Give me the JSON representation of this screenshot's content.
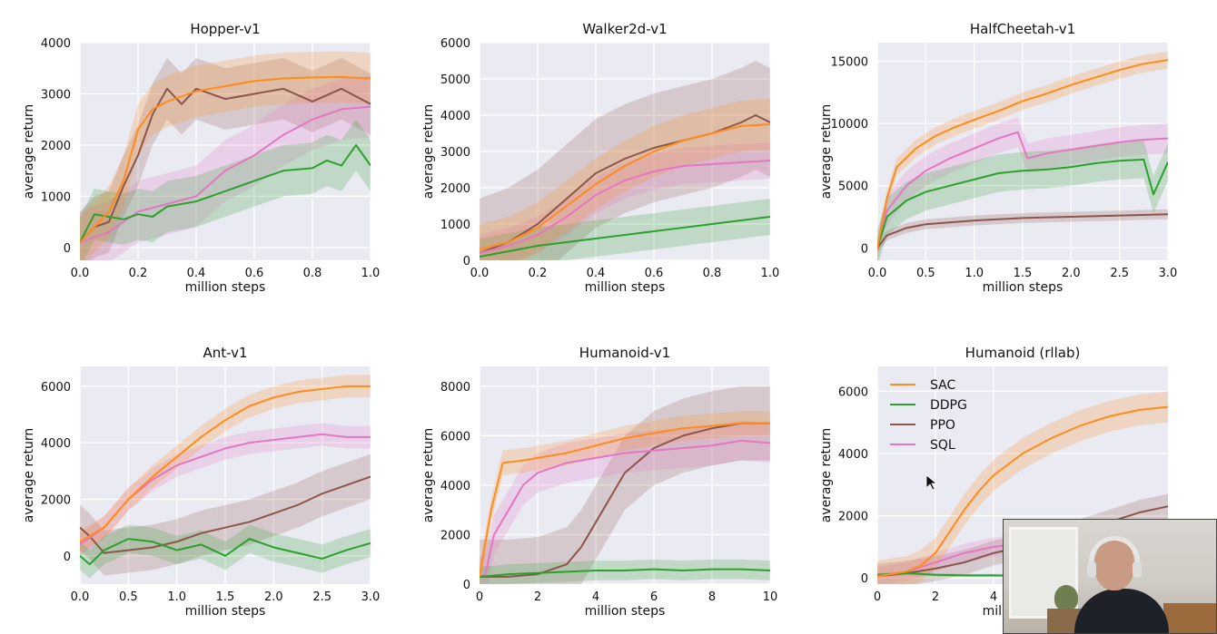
{
  "colors": {
    "SAC": "#ff8c1a",
    "DDPG": "#2ca02c",
    "PPO": "#8c564b",
    "SQL": "#e377c2"
  },
  "legend": {
    "entries": [
      "SAC",
      "DDPG",
      "PPO",
      "SQL"
    ],
    "placement": "upper-left of Humanoid (rllab) panel"
  },
  "chart_data": [
    {
      "type": "line",
      "title": "Hopper-v1",
      "xlabel": "million steps",
      "ylabel": "average return",
      "xlim": [
        0,
        1.0
      ],
      "ylim": [
        -250,
        4000
      ],
      "xticks": [
        0.0,
        0.2,
        0.4,
        0.6,
        0.8,
        1.0
      ],
      "xtick_labels": [
        "0.0",
        "0.2",
        "0.4",
        "0.6",
        "0.8",
        "1.0"
      ],
      "yticks": [
        0,
        1000,
        2000,
        3000,
        4000
      ],
      "ytick_labels": [
        "0",
        "1000",
        "2000",
        "3000",
        "4000"
      ],
      "series": [
        {
          "name": "SAC",
          "x": [
            0,
            0.05,
            0.1,
            0.15,
            0.2,
            0.25,
            0.3,
            0.4,
            0.5,
            0.6,
            0.7,
            0.8,
            0.9,
            1.0
          ],
          "y": [
            100,
            400,
            700,
            1300,
            2300,
            2700,
            2850,
            3050,
            3150,
            3250,
            3300,
            3320,
            3330,
            3300
          ],
          "spread": 500
        },
        {
          "name": "DDPG",
          "x": [
            0,
            0.05,
            0.1,
            0.15,
            0.2,
            0.25,
            0.3,
            0.4,
            0.5,
            0.6,
            0.7,
            0.8,
            0.85,
            0.9,
            0.95,
            1.0
          ],
          "y": [
            100,
            650,
            600,
            550,
            650,
            600,
            800,
            900,
            1100,
            1300,
            1500,
            1550,
            1700,
            1600,
            2000,
            1600
          ],
          "spread": 500
        },
        {
          "name": "PPO",
          "x": [
            0,
            0.05,
            0.1,
            0.15,
            0.2,
            0.25,
            0.3,
            0.35,
            0.4,
            0.5,
            0.6,
            0.7,
            0.8,
            0.9,
            1.0
          ],
          "y": [
            100,
            400,
            500,
            1200,
            1800,
            2600,
            3100,
            2800,
            3100,
            2900,
            3000,
            3100,
            2850,
            3100,
            2800
          ],
          "spread": 600
        },
        {
          "name": "SQL",
          "x": [
            0,
            0.1,
            0.2,
            0.3,
            0.4,
            0.5,
            0.6,
            0.7,
            0.8,
            0.9,
            1.0
          ],
          "y": [
            100,
            300,
            700,
            850,
            1000,
            1500,
            1800,
            2200,
            2500,
            2700,
            2750
          ],
          "spread": 600
        }
      ]
    },
    {
      "type": "line",
      "title": "Walker2d-v1",
      "xlabel": "million steps",
      "ylabel": "average return",
      "xlim": [
        0,
        1.0
      ],
      "ylim": [
        0,
        6000
      ],
      "xticks": [
        0.0,
        0.2,
        0.4,
        0.6,
        0.8,
        1.0
      ],
      "xtick_labels": [
        "0.0",
        "0.2",
        "0.4",
        "0.6",
        "0.8",
        "1.0"
      ],
      "yticks": [
        0,
        1000,
        2000,
        3000,
        4000,
        5000,
        6000
      ],
      "ytick_labels": [
        "0",
        "1000",
        "2000",
        "3000",
        "4000",
        "5000",
        "6000"
      ],
      "series": [
        {
          "name": "SAC",
          "x": [
            0,
            0.1,
            0.2,
            0.3,
            0.4,
            0.5,
            0.6,
            0.7,
            0.8,
            0.9,
            1.0
          ],
          "y": [
            300,
            500,
            900,
            1500,
            2100,
            2600,
            3000,
            3300,
            3500,
            3700,
            3750
          ],
          "spread": 700
        },
        {
          "name": "DDPG",
          "x": [
            0,
            0.1,
            0.2,
            0.3,
            0.4,
            0.5,
            0.6,
            0.7,
            0.8,
            0.9,
            1.0
          ],
          "y": [
            100,
            250,
            400,
            500,
            600,
            700,
            800,
            900,
            1000,
            1100,
            1200
          ],
          "spread": 500
        },
        {
          "name": "PPO",
          "x": [
            0,
            0.1,
            0.2,
            0.3,
            0.4,
            0.5,
            0.6,
            0.7,
            0.8,
            0.9,
            0.95,
            1.0
          ],
          "y": [
            200,
            500,
            1000,
            1700,
            2400,
            2800,
            3100,
            3300,
            3500,
            3800,
            4000,
            3800
          ],
          "spread": 1500
        },
        {
          "name": "SQL",
          "x": [
            0,
            0.1,
            0.2,
            0.3,
            0.4,
            0.5,
            0.6,
            0.7,
            0.8,
            0.9,
            1.0
          ],
          "y": [
            200,
            400,
            700,
            1200,
            1800,
            2200,
            2450,
            2600,
            2650,
            2700,
            2750
          ],
          "spread": 500
        }
      ]
    },
    {
      "type": "line",
      "title": "HalfCheetah-v1",
      "xlabel": "million steps",
      "ylabel": "average return",
      "xlim": [
        0,
        3.0
      ],
      "ylim": [
        -1000,
        16500
      ],
      "xticks": [
        0.0,
        0.5,
        1.0,
        1.5,
        2.0,
        2.5,
        3.0
      ],
      "xtick_labels": [
        "0.0",
        "0.5",
        "1.0",
        "1.5",
        "2.0",
        "2.5",
        "3.0"
      ],
      "yticks": [
        0,
        5000,
        10000,
        15000
      ],
      "ytick_labels": [
        "0",
        "5000",
        "10000",
        "15000"
      ],
      "series": [
        {
          "name": "SAC",
          "x": [
            0,
            0.1,
            0.2,
            0.4,
            0.6,
            0.8,
            1.0,
            1.25,
            1.5,
            1.75,
            2.0,
            2.25,
            2.5,
            2.75,
            3.0
          ],
          "y": [
            0,
            4000,
            6500,
            8000,
            9000,
            9700,
            10300,
            11000,
            11800,
            12400,
            13100,
            13700,
            14300,
            14800,
            15100
          ],
          "spread": 700
        },
        {
          "name": "DDPG",
          "x": [
            0,
            0.1,
            0.3,
            0.5,
            0.75,
            1.0,
            1.25,
            1.5,
            1.75,
            2.0,
            2.25,
            2.5,
            2.75,
            2.85,
            3.0
          ],
          "y": [
            0,
            2500,
            3800,
            4500,
            5000,
            5500,
            6000,
            6200,
            6300,
            6500,
            6800,
            7000,
            7100,
            4300,
            6900
          ],
          "spread": 1500
        },
        {
          "name": "PPO",
          "x": [
            0,
            0.1,
            0.3,
            0.5,
            1.0,
            1.5,
            2.0,
            2.5,
            3.0
          ],
          "y": [
            0,
            1000,
            1600,
            1900,
            2200,
            2400,
            2500,
            2600,
            2700
          ],
          "spread": 400
        },
        {
          "name": "SQL",
          "x": [
            0,
            0.1,
            0.3,
            0.5,
            0.75,
            1.0,
            1.25,
            1.45,
            1.55,
            1.75,
            2.0,
            2.25,
            2.5,
            2.75,
            3.0
          ],
          "y": [
            0,
            3000,
            5000,
            6200,
            7200,
            8000,
            8800,
            9300,
            7200,
            7600,
            7900,
            8200,
            8500,
            8700,
            8800
          ],
          "spread": 1200
        }
      ]
    },
    {
      "type": "line",
      "title": "Ant-v1",
      "xlabel": "million steps",
      "ylabel": "average return",
      "xlim": [
        0,
        3.0
      ],
      "ylim": [
        -1000,
        6700
      ],
      "xticks": [
        0.0,
        0.5,
        1.0,
        1.5,
        2.0,
        2.5,
        3.0
      ],
      "xtick_labels": [
        "0.0",
        "0.5",
        "1.0",
        "1.5",
        "2.0",
        "2.5",
        "3.0"
      ],
      "yticks": [
        0,
        2000,
        4000,
        6000
      ],
      "ytick_labels": [
        "0",
        "2000",
        "4000",
        "6000"
      ],
      "series": [
        {
          "name": "SAC",
          "x": [
            0,
            0.25,
            0.5,
            0.75,
            1.0,
            1.25,
            1.5,
            1.75,
            2.0,
            2.25,
            2.5,
            2.75,
            3.0
          ],
          "y": [
            500,
            1000,
            2000,
            2800,
            3500,
            4200,
            4800,
            5300,
            5600,
            5800,
            5900,
            6000,
            6000
          ],
          "spread": 400
        },
        {
          "name": "DDPG",
          "x": [
            0,
            0.1,
            0.25,
            0.5,
            0.75,
            1.0,
            1.25,
            1.5,
            1.75,
            2.0,
            2.25,
            2.5,
            2.75,
            3.0
          ],
          "y": [
            0,
            -300,
            200,
            600,
            500,
            200,
            400,
            0,
            600,
            300,
            100,
            -100,
            200,
            450
          ],
          "spread": 500
        },
        {
          "name": "PPO",
          "x": [
            0,
            0.1,
            0.25,
            0.5,
            0.75,
            1.0,
            1.25,
            1.5,
            1.75,
            2.0,
            2.25,
            2.5,
            2.75,
            3.0
          ],
          "y": [
            1000,
            700,
            100,
            200,
            300,
            500,
            800,
            1000,
            1200,
            1500,
            1800,
            2200,
            2500,
            2800
          ],
          "spread": 800
        },
        {
          "name": "SQL",
          "x": [
            0,
            0.25,
            0.5,
            0.75,
            1.0,
            1.25,
            1.5,
            1.75,
            2.0,
            2.25,
            2.5,
            2.75,
            3.0
          ],
          "y": [
            400,
            1000,
            2000,
            2700,
            3200,
            3500,
            3800,
            4000,
            4100,
            4200,
            4300,
            4200,
            4200
          ],
          "spread": 400
        }
      ]
    },
    {
      "type": "line",
      "title": "Humanoid-v1",
      "xlabel": "million steps",
      "ylabel": "average return",
      "xlim": [
        0,
        10
      ],
      "ylim": [
        0,
        8800
      ],
      "xticks": [
        0,
        2,
        4,
        6,
        8,
        10
      ],
      "xtick_labels": [
        "0",
        "2",
        "4",
        "6",
        "8",
        "10"
      ],
      "yticks": [
        0,
        2000,
        4000,
        6000,
        8000
      ],
      "ytick_labels": [
        "0",
        "2000",
        "4000",
        "6000",
        "8000"
      ],
      "series": [
        {
          "name": "SAC",
          "x": [
            0,
            0.4,
            0.8,
            1.5,
            2,
            3,
            4,
            5,
            6,
            7,
            8,
            9,
            10
          ],
          "y": [
            300,
            3000,
            4900,
            5000,
            5100,
            5300,
            5600,
            5900,
            6100,
            6300,
            6400,
            6500,
            6500
          ],
          "spread": 500
        },
        {
          "name": "DDPG",
          "x": [
            0,
            1,
            2,
            3,
            4,
            5,
            6,
            7,
            8,
            9,
            10
          ],
          "y": [
            300,
            400,
            450,
            500,
            550,
            550,
            600,
            550,
            600,
            600,
            550
          ],
          "spread": 400
        },
        {
          "name": "PPO",
          "x": [
            0,
            1,
            2,
            3,
            3.5,
            4,
            4.5,
            5,
            6,
            7,
            8,
            9,
            10
          ],
          "y": [
            300,
            300,
            400,
            800,
            1500,
            2500,
            3500,
            4500,
            5500,
            6000,
            6300,
            6500,
            6500
          ],
          "spread": 1500
        },
        {
          "name": "SQL",
          "x": [
            0,
            0.2,
            0.5,
            1,
            1.5,
            2,
            3,
            4,
            5,
            6,
            7,
            8,
            9,
            10
          ],
          "y": [
            300,
            400,
            2000,
            3000,
            4000,
            4500,
            4900,
            5100,
            5300,
            5400,
            5500,
            5600,
            5800,
            5700
          ],
          "spread": 800
        }
      ]
    },
    {
      "type": "line",
      "title": "Humanoid (rllab)",
      "xlabel": "million steps",
      "ylabel": "average return",
      "xlim": [
        0,
        10
      ],
      "ylim": [
        -200,
        6800
      ],
      "xticks": [
        0,
        2,
        4
      ],
      "xtick_labels": [
        "0",
        "2",
        "4"
      ],
      "yticks": [
        0,
        2000,
        4000,
        6000
      ],
      "ytick_labels": [
        "0",
        "2000",
        "4000",
        "6000"
      ],
      "series": [
        {
          "name": "SAC",
          "x": [
            0,
            1,
            1.5,
            2,
            2.5,
            3,
            3.5,
            4,
            5,
            6,
            7,
            8,
            9,
            10
          ],
          "y": [
            50,
            200,
            400,
            800,
            1500,
            2200,
            2800,
            3300,
            4000,
            4500,
            4900,
            5200,
            5400,
            5500
          ],
          "spread": 500
        },
        {
          "name": "DDPG",
          "x": [
            0,
            1,
            2,
            3,
            4,
            5,
            6
          ],
          "y": [
            100,
            150,
            100,
            80,
            80,
            70,
            70
          ],
          "spread": 50
        },
        {
          "name": "PPO",
          "x": [
            0,
            1,
            2,
            3,
            4,
            5,
            6,
            7,
            8,
            9,
            10
          ],
          "y": [
            50,
            150,
            300,
            500,
            800,
            1000,
            1200,
            1500,
            1800,
            2100,
            2300
          ],
          "spread": 400
        },
        {
          "name": "SQL",
          "x": [
            0,
            1,
            2,
            3,
            4,
            5,
            6
          ],
          "y": [
            50,
            200,
            500,
            800,
            1000,
            1100,
            1200
          ],
          "spread": 300
        }
      ]
    }
  ],
  "webcam": {
    "label": "presenter-webcam-overlay"
  }
}
